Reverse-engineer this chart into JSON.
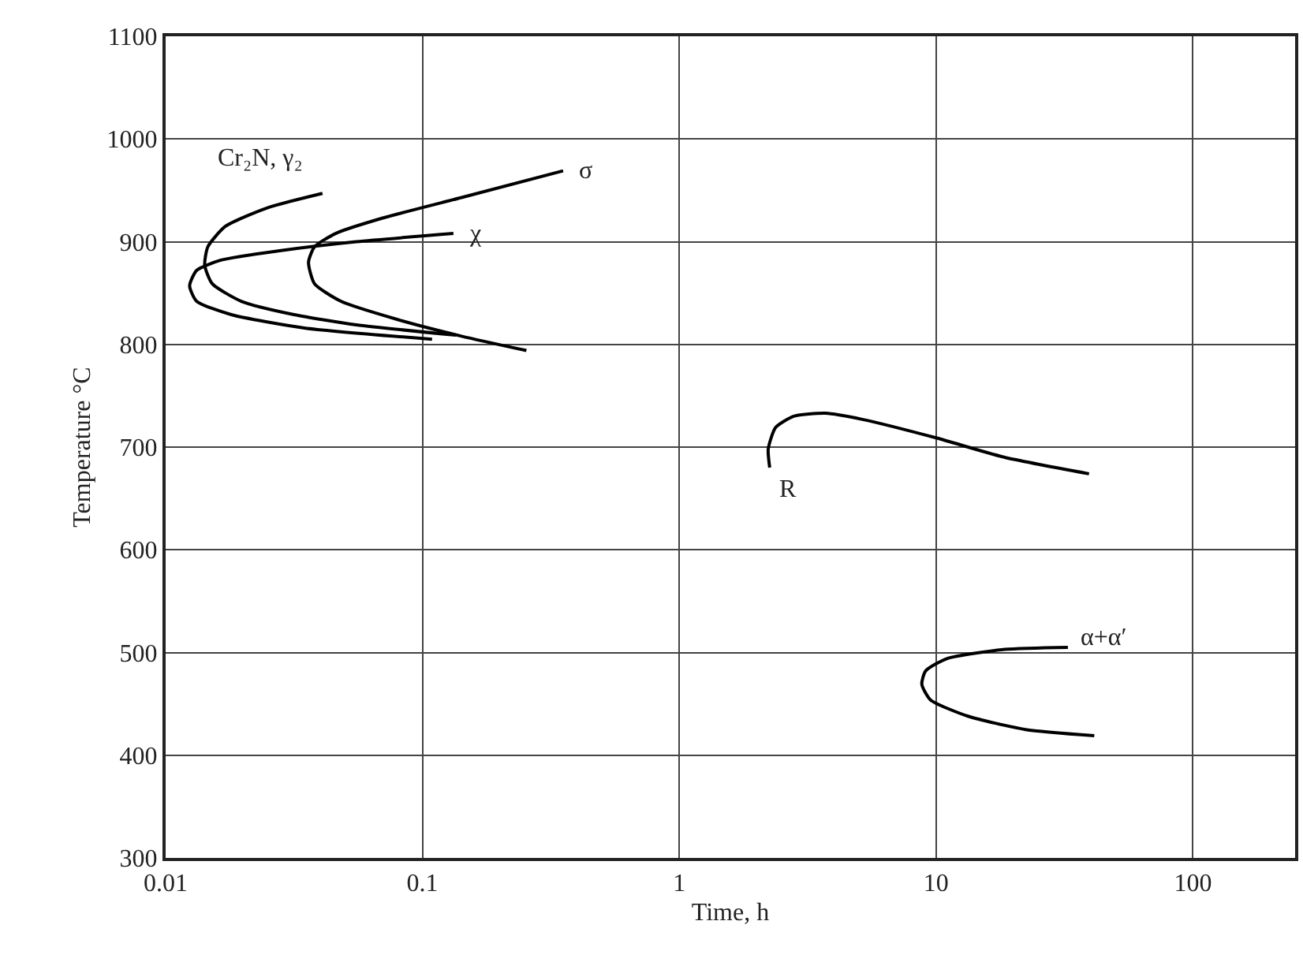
{
  "chart_data": {
    "type": "line",
    "xlabel": "Time, h",
    "ylabel": "Temperature °C",
    "log": "x",
    "xlim": [
      0.01,
      250
    ],
    "xticks": [
      0.01,
      0.1,
      1,
      10,
      100
    ],
    "ylim": [
      300,
      1100
    ],
    "yticks": [
      300,
      400,
      500,
      600,
      700,
      800,
      900,
      1000,
      1100
    ],
    "grid": true,
    "marker": "none",
    "line_style": "solid",
    "series": [
      {
        "name": "Cr₂N, γ₂",
        "color": "#000000",
        "x": [
          0.0408,
          0.0249,
          0.0171,
          0.0146,
          0.0142,
          0.0152,
          0.0197,
          0.0316,
          0.0553,
          0.135
        ],
        "values": [
          947,
          933,
          915,
          895,
          877,
          859,
          842,
          829,
          819,
          809
        ]
      },
      {
        "name": "σ",
        "color": "#000000",
        "x": [
          0.353,
          0.142,
          0.07,
          0.0459,
          0.038,
          0.036,
          0.038,
          0.0481,
          0.0805,
          0.142,
          0.254
        ],
        "values": [
          969,
          943,
          923,
          908,
          895,
          880,
          859,
          842,
          824,
          808,
          794
        ]
      },
      {
        "name": "χ",
        "color": "#000000",
        "x": [
          0.132,
          0.0553,
          0.0274,
          0.0164,
          0.0132,
          0.0124,
          0.0132,
          0.018,
          0.0347,
          0.109
        ],
        "values": [
          908,
          900,
          891,
          882,
          872,
          857,
          842,
          829,
          816,
          805
        ]
      },
      {
        "name": "R",
        "color": "#000000",
        "x": [
          2.25,
          2.22,
          2.37,
          2.79,
          3.71,
          5.16,
          10,
          18.5,
          39.4
        ],
        "values": [
          680,
          698,
          719,
          730,
          733,
          727,
          709,
          690,
          674
        ]
      },
      {
        "name": "α+α′",
        "color": "#000000",
        "x": [
          32.6,
          18.5,
          11.0,
          9.1,
          8.8,
          9.5,
          13.3,
          22.3,
          41.3
        ],
        "values": [
          505,
          503,
          494,
          482,
          469,
          454,
          438,
          425,
          419
        ]
      }
    ]
  }
}
